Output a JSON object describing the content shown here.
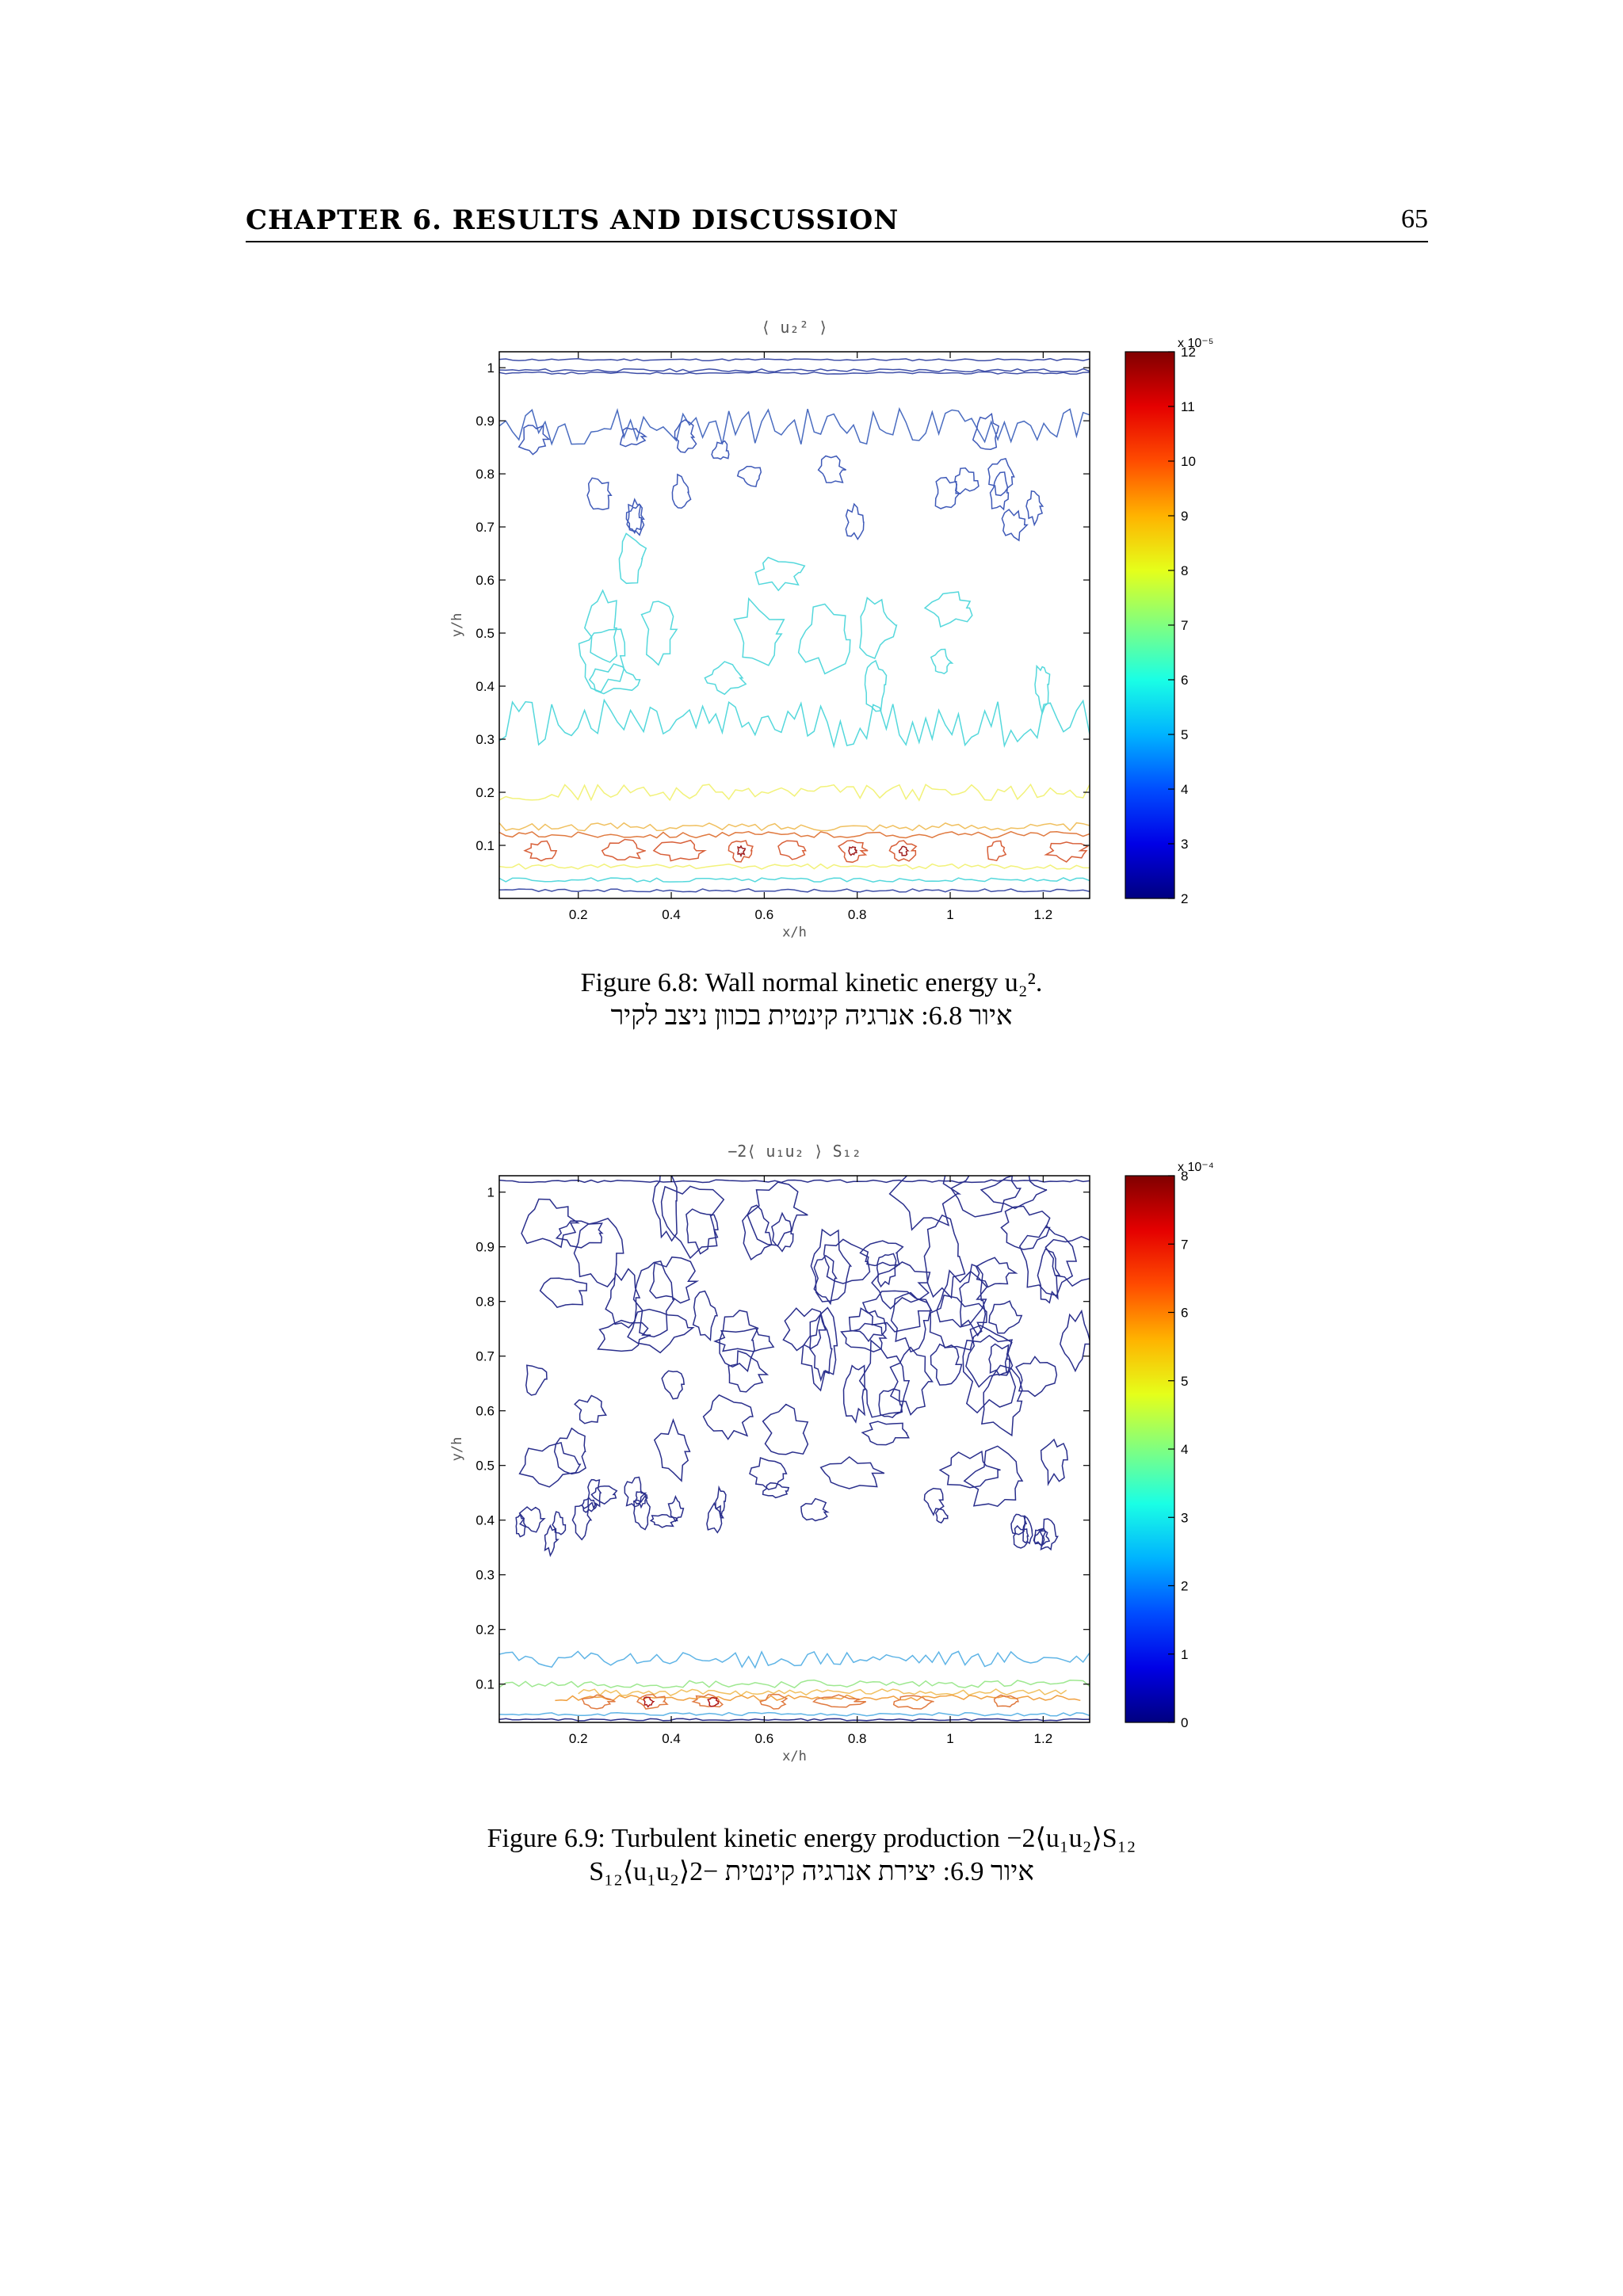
{
  "header": {
    "chapter": "CHAPTER 6.   RESULTS AND DISCUSSION",
    "page_number": "65"
  },
  "figures": [
    {
      "caption": "Figure 6.8: Wall normal kinetic energy u₂².",
      "caption_he": "איור 6.8: אנרגיה קינטית בכוון ניצב לקיר"
    },
    {
      "caption": "Figure 6.9: Turbulent kinetic energy production −2⟨u₁u₂⟩S₁₂",
      "caption_he": "איור 6.9: יצירת אנרגיה קינטית −2⟨u₁u₂⟩S₁₂"
    }
  ],
  "chart_data": [
    {
      "type": "contour",
      "title": "⟨ u₂² ⟩",
      "xlabel": "x/h",
      "ylabel": "y/h",
      "xlim": [
        0.03,
        1.3
      ],
      "ylim": [
        0.0,
        1.03
      ],
      "xticks": [
        0.2,
        0.4,
        0.6,
        0.8,
        1,
        1.2
      ],
      "yticks": [
        0.1,
        0.2,
        0.3,
        0.4,
        0.5,
        0.6,
        0.7,
        0.8,
        0.9,
        1
      ],
      "colorbar": {
        "range": [
          2,
          12
        ],
        "ticks": [
          2,
          3,
          4,
          5,
          6,
          7,
          8,
          9,
          10,
          11,
          12
        ],
        "multiplier": "x 10⁻⁵",
        "colormap": "jet"
      },
      "contour_levels": [
        {
          "level_label": "~3",
          "color": "#3f4fa8",
          "y_band": "0.8–1.0 and near y=1.0"
        },
        {
          "level_label": "~5.5",
          "color": "#55d8dc",
          "y_band": "0.3–0.55"
        },
        {
          "level_label": "~7.5",
          "color": "#f0f07a",
          "y_band": "0.15–0.2"
        },
        {
          "level_label": "~10",
          "color": "#e07040",
          "y_band": "0.07–0.12"
        }
      ]
    },
    {
      "type": "contour",
      "title": "−2⟨ u₁u₂ ⟩ S₁₂",
      "xlabel": "x/h",
      "ylabel": "y/h",
      "xlim": [
        0.03,
        1.3
      ],
      "ylim": [
        0.03,
        1.03
      ],
      "xticks": [
        0.2,
        0.4,
        0.6,
        0.8,
        1,
        1.2
      ],
      "yticks": [
        0.1,
        0.2,
        0.3,
        0.4,
        0.5,
        0.6,
        0.7,
        0.8,
        0.9,
        1
      ],
      "colorbar": {
        "range": [
          0,
          8
        ],
        "ticks": [
          0,
          1,
          2,
          3,
          4,
          5,
          6,
          7,
          8
        ],
        "multiplier": "x 10⁻⁴",
        "colormap": "jet"
      },
      "contour_levels": [
        {
          "level_label": "~0.5",
          "color": "#2a2f8c",
          "y_band": "0.35–1.0"
        },
        {
          "level_label": "~2",
          "color": "#5fb4e6",
          "y_band": "0.12–0.16"
        },
        {
          "level_label": "~4",
          "color": "#9ee890",
          "y_band": "0.07–0.1"
        },
        {
          "level_label": "~6",
          "color": "#f0a040",
          "y_band": "0.05–0.08"
        },
        {
          "level_label": "~8",
          "color": "#b01818",
          "y_band": "0.06"
        }
      ]
    }
  ]
}
